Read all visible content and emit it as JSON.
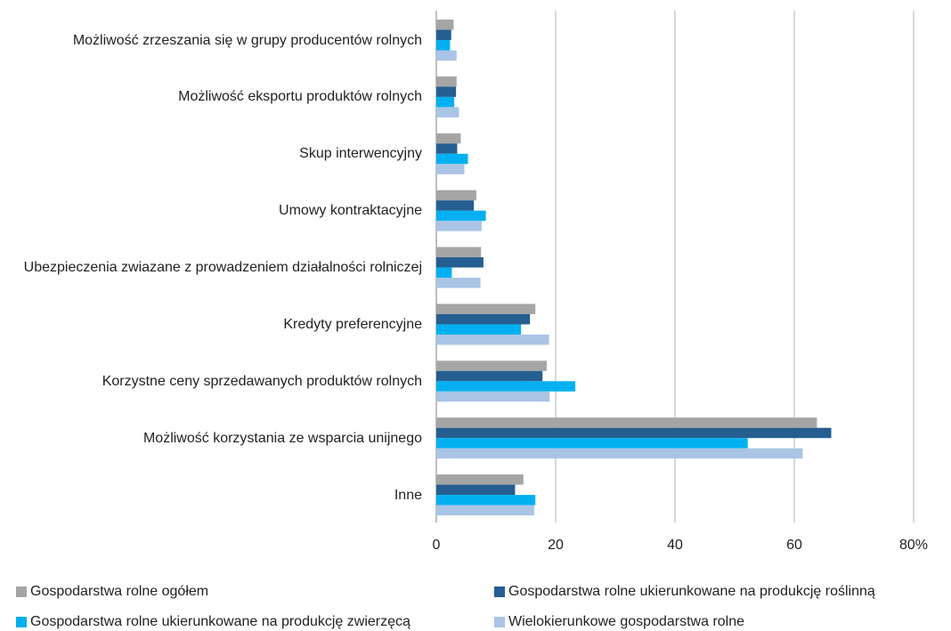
{
  "chart_data": {
    "type": "bar",
    "orientation": "horizontal",
    "categories": [
      "Możliwość zrzeszania się w grupy producentów rolnych",
      "Możliwość eksportu produktów rolnych",
      "Skup interwencyjny",
      "Umowy kontraktacyjne",
      "Ubezpieczenia zwiazane z prowadzeniem działalności rolniczej",
      "Kredyty preferencyjne",
      "Korzystne ceny sprzedawanych produktów rolnych",
      "Możliwość korzystania ze wsparcia unijnego",
      "Inne"
    ],
    "series": [
      {
        "name": "Gospodarstwa rolne ogółem",
        "color": "#a5a5a5",
        "values": [
          2.9,
          3.4,
          4.1,
          6.7,
          7.5,
          16.6,
          18.5,
          63.8,
          14.6
        ]
      },
      {
        "name": "Gospodarstwa rolne ukierunkowane na produkcję roślinną",
        "color": "#255e91",
        "values": [
          2.5,
          3.3,
          3.5,
          6.3,
          7.9,
          15.7,
          17.8,
          66.2,
          13.2
        ]
      },
      {
        "name": "Gospodarstwa rolne ukierunkowane na produkcję zwierzęcą",
        "color": "#00b0f0",
        "values": [
          2.3,
          3.0,
          5.3,
          8.3,
          2.6,
          14.2,
          23.3,
          52.2,
          16.6
        ]
      },
      {
        "name": "Wielokierunkowe gospodarstwa rolne",
        "color": "#a9c4e4",
        "values": [
          3.4,
          3.8,
          4.7,
          7.6,
          7.4,
          18.9,
          19.0,
          61.4,
          16.4
        ]
      }
    ],
    "xlim": [
      0,
      80
    ],
    "ticks": [
      "0",
      "20",
      "40",
      "60",
      "80%"
    ],
    "grid": true,
    "legend_position": "bottom"
  }
}
